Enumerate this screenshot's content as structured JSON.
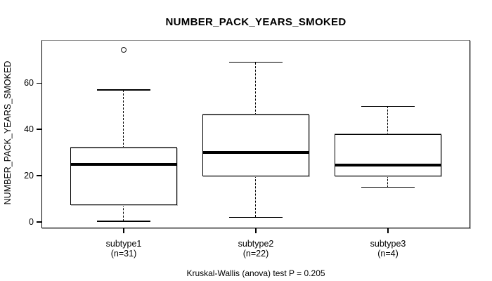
{
  "chart_data": {
    "type": "boxplot",
    "title": "NUMBER_PACK_YEARS_SMOKED",
    "ylabel": "NUMBER_PACK_YEARS_SMOKED",
    "caption": "Kruskal-Wallis (anova) test P = 0.205",
    "yticks": [
      0,
      20,
      40,
      60
    ],
    "ylim": [
      -2.7,
      78.6
    ],
    "grid": false,
    "legend": "none",
    "groups": [
      {
        "label": "subtype1",
        "n_label": "(n=31)",
        "n": 31,
        "lower_whisker": 0.3,
        "q1": 7.5,
        "median": 25,
        "q3": 32,
        "upper_whisker": 57,
        "outliers": [
          74.5
        ]
      },
      {
        "label": "subtype2",
        "n_label": "(n=22)",
        "n": 22,
        "lower_whisker": 2,
        "q1": 20,
        "median": 30,
        "q3": 46,
        "upper_whisker": 69,
        "outliers": []
      },
      {
        "label": "subtype3",
        "n_label": "(n=4)",
        "n": 4,
        "lower_whisker": 15,
        "q1": 20,
        "median": 24.5,
        "q3": 37.5,
        "upper_whisker": 50,
        "outliers": []
      }
    ]
  }
}
